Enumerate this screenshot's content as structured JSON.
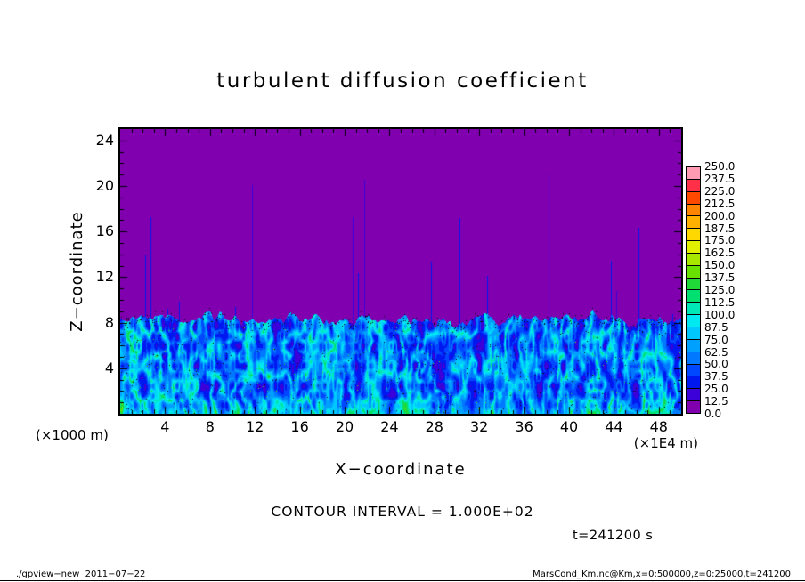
{
  "title": "turbulent diffusion coefficient",
  "axes": {
    "x_label": "X−coordinate",
    "y_label": "Z−coordinate",
    "x_unit": "(×1E4 m)",
    "y_unit": "(×1000 m)",
    "x_ticks": [
      4,
      8,
      12,
      16,
      20,
      24,
      28,
      32,
      36,
      40,
      44,
      48
    ],
    "y_ticks": [
      4,
      8,
      12,
      16,
      20,
      24
    ]
  },
  "annotations": {
    "contour_interval": "CONTOUR INTERVAL =  1.000E+02",
    "time": "t=241200 s"
  },
  "footer": {
    "left": "./gpview−new  2011−07−22",
    "right": "MarsCond_Km.nc@Km,x=0:500000,z=0:25000,t=241200"
  },
  "colorbar": {
    "levels": [
      "0.0",
      "12.5",
      "25.0",
      "37.5",
      "50.0",
      "62.5",
      "75.0",
      "87.5",
      "100.0",
      "112.5",
      "125.0",
      "137.5",
      "150.0",
      "162.5",
      "175.0",
      "187.5",
      "200.0",
      "212.5",
      "225.0",
      "237.5",
      "250.0"
    ],
    "palette": [
      "#8000b0",
      "#3c00d8",
      "#0018f0",
      "#0048ff",
      "#0078ff",
      "#00a0ff",
      "#00c8ff",
      "#00e8f0",
      "#00e8b8",
      "#00e070",
      "#20d838",
      "#68e000",
      "#a8e800",
      "#e0f000",
      "#ffd800",
      "#ffb000",
      "#ff8400",
      "#ff4800",
      "#ff3048",
      "#ff9cb4"
    ]
  },
  "chart_data": {
    "type": "heatmap",
    "title": "turbulent diffusion coefficient",
    "xlabel": "X−coordinate",
    "ylabel": "Z−coordinate",
    "x_unit": "×1E4 m",
    "y_unit": "×1000 m",
    "x_range": [
      0,
      50
    ],
    "z_range": [
      0,
      25
    ],
    "x_ticks": [
      4,
      8,
      12,
      16,
      20,
      24,
      28,
      32,
      36,
      40,
      44,
      48
    ],
    "z_ticks": [
      4,
      8,
      12,
      16,
      20,
      24
    ],
    "contour_interval": 100.0,
    "time_seconds": 241200,
    "levels": [
      0,
      12.5,
      25,
      37.5,
      50,
      62.5,
      75,
      87.5,
      100,
      112.5,
      125,
      137.5,
      150,
      162.5,
      175,
      187.5,
      200,
      212.5,
      225,
      237.5,
      250
    ],
    "field_summary": "Value ≈ 0 (purple) everywhere above z ≈ 8–10; turbulent boundary layer below z ≈ 8 made of plume-like vertical structures with values ≈ 25–100 (dark blue cores with bright cyan filaments), occasional green/dark specks near the interface, and thin weak vertical streaks extending up to z ≈ 20",
    "coarse_grid": {
      "x": [
        2,
        6,
        10,
        14,
        18,
        22,
        26,
        30,
        34,
        38,
        42,
        46
      ],
      "z": [
        22,
        18,
        14,
        10,
        8,
        6,
        4,
        2
      ],
      "values": [
        [
          0,
          0,
          0,
          0,
          0,
          0,
          0,
          0,
          0,
          0,
          0,
          0
        ],
        [
          0,
          0,
          0,
          0,
          0,
          0,
          0,
          0,
          0,
          0,
          0,
          0
        ],
        [
          0,
          0,
          0,
          0,
          0,
          0,
          0,
          0,
          0,
          0,
          0,
          0
        ],
        [
          0,
          0,
          0,
          0,
          0,
          0,
          0,
          0,
          0,
          0,
          0,
          0
        ],
        [
          30,
          0,
          25,
          0,
          40,
          0,
          0,
          35,
          0,
          30,
          0,
          25
        ],
        [
          45,
          30,
          60,
          40,
          75,
          35,
          55,
          80,
          40,
          60,
          35,
          50
        ],
        [
          60,
          45,
          80,
          55,
          90,
          50,
          70,
          85,
          55,
          75,
          50,
          65
        ],
        [
          70,
          55,
          85,
          65,
          95,
          60,
          80,
          90,
          65,
          85,
          60,
          75
        ]
      ]
    }
  }
}
